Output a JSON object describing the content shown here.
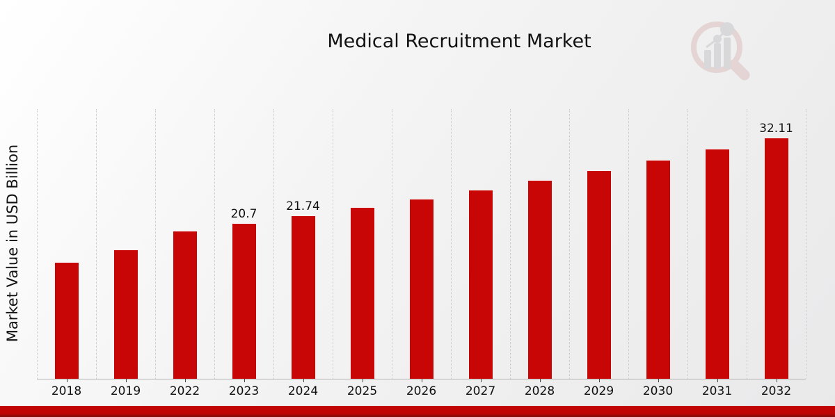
{
  "title": "Medical Recruitment Market",
  "ylabel": "Market Value in USD Billion",
  "icons": {
    "watermark": "bar-chart-magnifier-logo"
  },
  "colors": {
    "bar": "#c90606",
    "gridline": "#c9c9c9",
    "axis": "#b3b3b3",
    "text": "#111111",
    "footer_band": "#c10505",
    "footer_band_dark": "#7f0b0b",
    "logo_pink": "#cf9c9c",
    "logo_gray": "#a9a9ae"
  },
  "chart_data": {
    "type": "bar",
    "title": "Medical Recruitment Market",
    "xlabel": "",
    "ylabel": "Market Value in USD Billion",
    "categories": [
      "2018",
      "2019",
      "2022",
      "2023",
      "2024",
      "2025",
      "2026",
      "2027",
      "2028",
      "2029",
      "2030",
      "2031",
      "2032"
    ],
    "values": [
      15.5,
      17.2,
      19.71,
      20.7,
      21.74,
      22.83,
      23.97,
      25.17,
      26.43,
      27.75,
      29.14,
      30.59,
      32.11
    ],
    "data_labels": [
      "",
      "",
      "",
      "20.7",
      "21.74",
      "",
      "",
      "",
      "",
      "",
      "",
      "",
      "32.11"
    ],
    "bar_color": "#c90606",
    "ylim": [
      0,
      35.9
    ],
    "grid": "vertical-dotted",
    "legend": "none"
  }
}
